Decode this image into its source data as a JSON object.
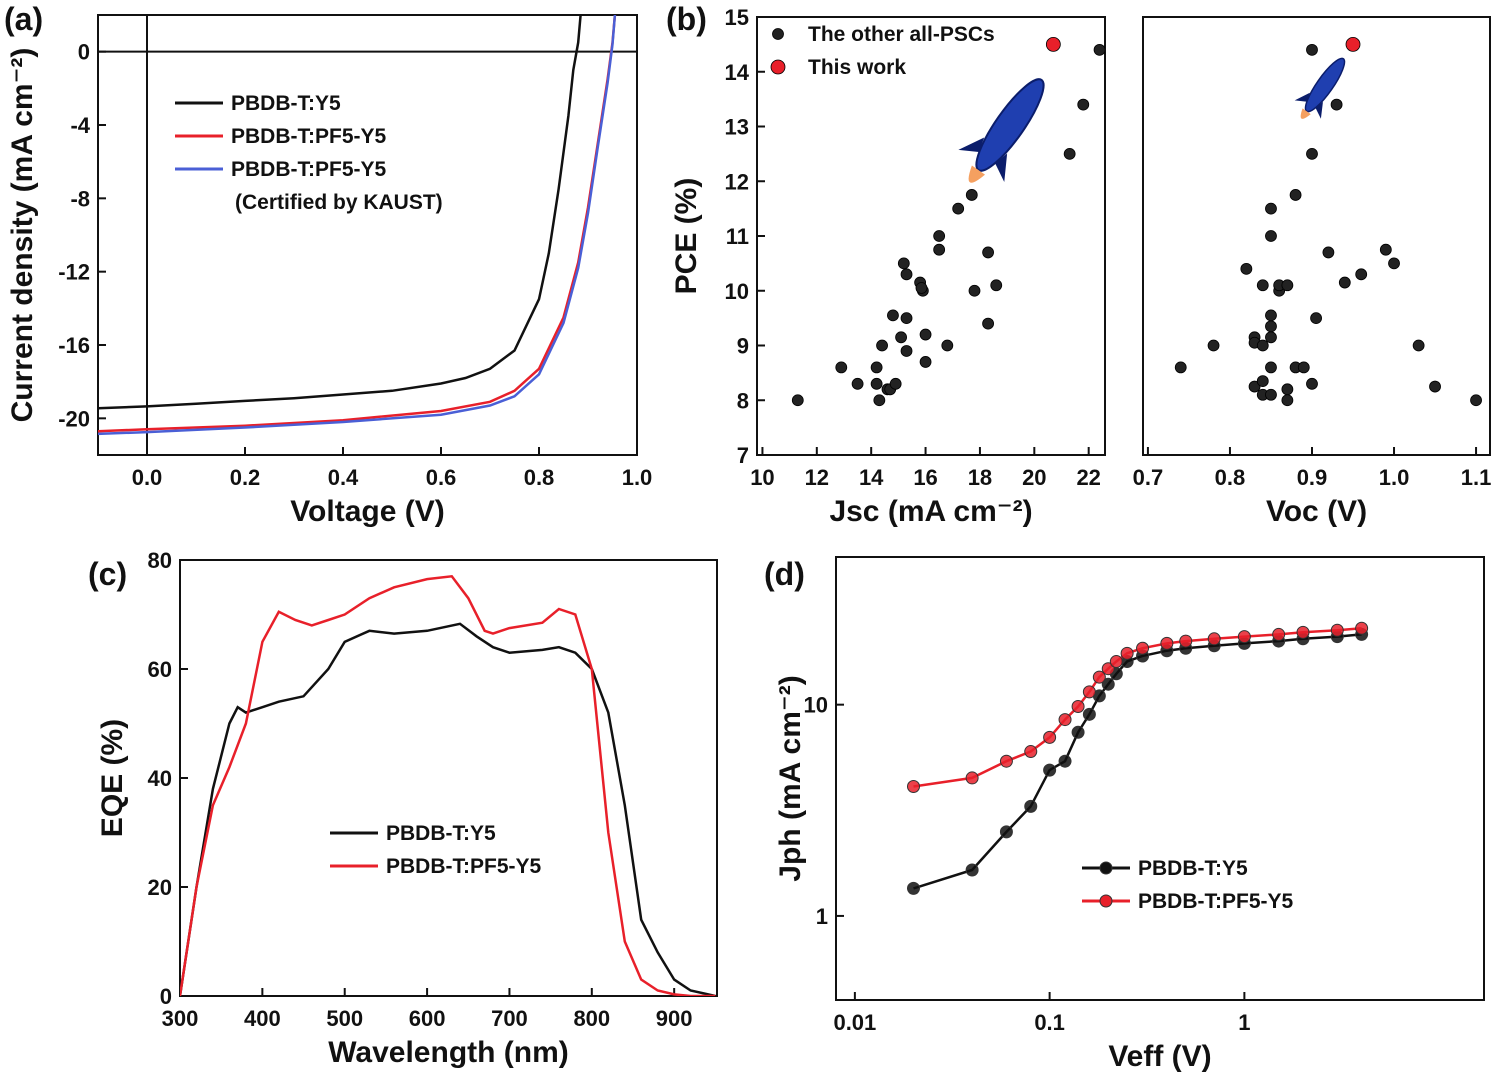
{
  "chart_data": [
    {
      "type": "line",
      "panel_label": "(a)",
      "x_label": "Voltage (V)",
      "y_label": "Current density (mA cm⁻²)",
      "xlim": [
        -0.1,
        1.0
      ],
      "ylim": [
        -22,
        2
      ],
      "xticks": [
        {
          "value": 0,
          "label": "0.0"
        },
        0.2,
        0.4,
        0.6,
        0.8,
        {
          "value": 1,
          "label": "1.0"
        }
      ],
      "yticks": [
        0,
        -4,
        -8,
        -12,
        -16,
        -20
      ],
      "zero_lines": true,
      "series": [
        {
          "name": "PBDB-T:Y5",
          "color": "#111111",
          "x": [
            -0.1,
            0,
            0.1,
            0.2,
            0.3,
            0.4,
            0.5,
            0.6,
            0.65,
            0.7,
            0.75,
            0.8,
            0.82,
            0.84,
            0.86,
            0.87,
            0.88,
            0.885
          ],
          "values": [
            -19.45,
            -19.35,
            -19.2,
            -19.05,
            -18.9,
            -18.7,
            -18.5,
            -18.1,
            -17.8,
            -17.3,
            -16.3,
            -13.5,
            -11,
            -7.5,
            -3.5,
            -1,
            0.5,
            2
          ]
        },
        {
          "name": "PBDB-T:PF5-Y5",
          "color": "#e8202a",
          "x": [
            -0.1,
            0,
            0.2,
            0.4,
            0.6,
            0.7,
            0.75,
            0.8,
            0.85,
            0.88,
            0.9,
            0.92,
            0.94,
            0.95,
            0.955
          ],
          "values": [
            -20.7,
            -20.6,
            -20.4,
            -20.1,
            -19.6,
            -19.1,
            -18.5,
            -17.3,
            -14.5,
            -11.5,
            -8.5,
            -5,
            -1.5,
            0.5,
            2
          ]
        },
        {
          "name": "PBDB-T:PF5-Y5",
          "note": "(Certified by KAUST)",
          "color": "#4a5fd6",
          "x": [
            -0.1,
            0,
            0.2,
            0.4,
            0.6,
            0.7,
            0.75,
            0.8,
            0.85,
            0.88,
            0.9,
            0.92,
            0.94,
            0.95,
            0.955
          ],
          "values": [
            -20.85,
            -20.75,
            -20.5,
            -20.2,
            -19.8,
            -19.3,
            -18.8,
            -17.6,
            -14.8,
            -11.8,
            -8.8,
            -5.2,
            -1.7,
            0.4,
            2
          ]
        }
      ]
    },
    {
      "type": "scatter",
      "panel_label": "(b)",
      "x_label": "Jsc (mA cm⁻²)",
      "y_label": "PCE (%)",
      "xlim": [
        9.8,
        22.6
      ],
      "ylim": [
        7,
        15
      ],
      "xticks": [
        10,
        12,
        14,
        16,
        18,
        20,
        22
      ],
      "yticks": [
        7,
        8,
        9,
        10,
        11,
        12,
        13,
        14,
        15
      ],
      "series": [
        {
          "name": "The other all-PSCs",
          "color": "#222222",
          "x": [
            11.3,
            12.9,
            13.5,
            14.2,
            14.3,
            14.2,
            14.4,
            14.6,
            14.7,
            14.9,
            14.8,
            15.1,
            15.2,
            15.3,
            15.3,
            15.3,
            15.8,
            15.9,
            15.85,
            16.0,
            16.0,
            16.5,
            16.5,
            16.8,
            17.2,
            17.7,
            17.8,
            18.3,
            18.3,
            18.6,
            21.3,
            21.8,
            22.4
          ],
          "y": [
            8.0,
            8.6,
            8.3,
            8.3,
            8.0,
            8.6,
            9.0,
            8.2,
            8.2,
            8.3,
            9.55,
            9.15,
            10.5,
            10.3,
            8.9,
            9.5,
            10.15,
            10.0,
            10.05,
            8.7,
            9.2,
            10.75,
            11.0,
            9.0,
            11.5,
            11.75,
            10.0,
            10.7,
            9.4,
            10.1,
            12.5,
            13.4,
            14.4
          ]
        },
        {
          "name": "This work",
          "color": "#e8202a",
          "x": [
            20.7
          ],
          "y": [
            14.5
          ]
        }
      ]
    },
    {
      "type": "scatter",
      "x_label": "Voc (V)",
      "xlim": [
        0.694,
        1.117
      ],
      "ylim": [
        7,
        15
      ],
      "xticks": [
        0.7,
        0.8,
        0.9,
        {
          "value": 1,
          "label": "1.0"
        },
        1.1
      ],
      "series": [
        {
          "color": "#222222",
          "x": [
            0.74,
            0.78,
            0.82,
            0.83,
            0.83,
            0.83,
            0.84,
            0.84,
            0.84,
            0.84,
            0.85,
            0.85,
            0.85,
            0.85,
            0.85,
            0.85,
            0.85,
            0.86,
            0.86,
            0.87,
            0.87,
            0.87,
            0.88,
            0.88,
            0.89,
            0.9,
            0.9,
            0.9,
            0.905,
            0.92,
            0.93,
            0.94,
            0.96,
            0.99,
            1.0,
            1.03,
            1.05,
            1.1
          ],
          "y": [
            8.6,
            9.0,
            10.4,
            9.15,
            9.05,
            8.25,
            8.35,
            8.1,
            10.1,
            9.0,
            9.55,
            9.35,
            9.15,
            8.1,
            8.6,
            11.5,
            11.0,
            10.0,
            10.1,
            10.1,
            8.2,
            8.0,
            11.75,
            8.6,
            8.6,
            12.5,
            14.4,
            8.3,
            9.5,
            10.7,
            13.4,
            10.15,
            10.3,
            10.75,
            10.5,
            9.0,
            8.25,
            8.0
          ]
        },
        {
          "color": "#e8202a",
          "x": [
            0.95
          ],
          "y": [
            14.5
          ]
        }
      ]
    },
    {
      "type": "line",
      "panel_label": "(c)",
      "x_label": "Wavelength (nm)",
      "y_label": "EQE (%)",
      "xlim": [
        300,
        952
      ],
      "ylim": [
        0,
        80
      ],
      "xticks": [
        300,
        400,
        500,
        600,
        700,
        800,
        900
      ],
      "yticks": [
        0,
        20,
        40,
        60,
        80
      ],
      "series": [
        {
          "name": "PBDB-T:Y5",
          "color": "#111111",
          "x": [
            300,
            320,
            340,
            360,
            370,
            380,
            400,
            420,
            450,
            480,
            500,
            530,
            560,
            600,
            640,
            660,
            680,
            700,
            740,
            760,
            780,
            800,
            820,
            840,
            860,
            880,
            900,
            920,
            950
          ],
          "values": [
            0,
            20,
            38,
            50,
            53,
            52,
            53,
            54,
            55,
            60,
            65,
            67,
            66.5,
            67,
            68.3,
            66,
            64,
            63,
            63.5,
            64,
            63,
            60,
            52,
            35,
            14,
            8,
            3,
            1,
            0
          ]
        },
        {
          "name": "PBDB-T:PF5-Y5",
          "color": "#e8202a",
          "x": [
            300,
            320,
            340,
            360,
            380,
            400,
            420,
            440,
            460,
            480,
            500,
            530,
            560,
            600,
            630,
            650,
            670,
            680,
            700,
            740,
            760,
            780,
            800,
            820,
            840,
            860,
            880,
            900,
            920,
            950
          ],
          "values": [
            0,
            20,
            35,
            42,
            50,
            65,
            70.5,
            69,
            68,
            69,
            70,
            73,
            75,
            76.5,
            77,
            73,
            67,
            66.5,
            67.5,
            68.5,
            71,
            70,
            60,
            30,
            10,
            3,
            1,
            0.3,
            0,
            0
          ]
        }
      ]
    },
    {
      "type": "line",
      "panel_label": "(d)",
      "markers": true,
      "x_label": "Veff (V)",
      "y_label": "Jph (mA cm⁻²)",
      "xscale": "log",
      "yscale": "log",
      "xlim": [
        0.008,
        17
      ],
      "ylim": [
        0.4,
        50
      ],
      "xticks": [
        0.01,
        0.1,
        1
      ],
      "yticks": [
        1,
        10
      ],
      "series": [
        {
          "name": "PBDB-T:Y5",
          "color": "#111111",
          "x": [
            0.02,
            0.04,
            0.06,
            0.08,
            0.1,
            0.12,
            0.14,
            0.16,
            0.18,
            0.2,
            0.22,
            0.25,
            0.3,
            0.4,
            0.5,
            0.7,
            1,
            1.5,
            2,
            3,
            4
          ],
          "values": [
            1.35,
            1.65,
            2.5,
            3.3,
            4.9,
            5.4,
            7.4,
            9.0,
            11,
            12.5,
            14,
            16,
            17,
            18,
            18.5,
            19,
            19.5,
            20,
            20.5,
            21,
            21.5
          ]
        },
        {
          "name": "PBDB-T:PF5-Y5",
          "color": "#e8202a",
          "x": [
            0.02,
            0.04,
            0.06,
            0.08,
            0.1,
            0.12,
            0.14,
            0.16,
            0.18,
            0.2,
            0.22,
            0.25,
            0.3,
            0.4,
            0.5,
            0.7,
            1,
            1.5,
            2,
            3,
            4
          ],
          "values": [
            4.1,
            4.5,
            5.4,
            6.0,
            7.0,
            8.5,
            9.8,
            11.5,
            13.5,
            14.8,
            16,
            17.5,
            18.5,
            19.5,
            20,
            20.5,
            21,
            21.5,
            22,
            22.5,
            23
          ]
        }
      ]
    }
  ]
}
